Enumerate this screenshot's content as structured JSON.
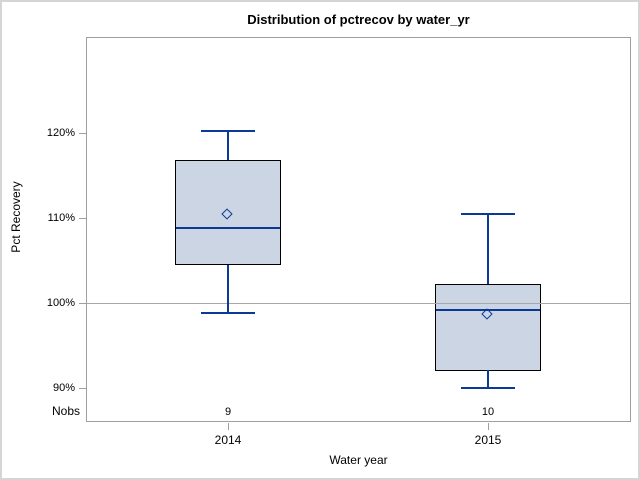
{
  "window": {
    "background": "#ffffff",
    "border_color": "#d5d5d5"
  },
  "chart_data": {
    "type": "boxplot",
    "title": "Distribution of pctrecov by water_yr",
    "xlabel": "Water year",
    "ylabel": "Pct Recovery",
    "nobs_label": "Nobs",
    "ylim": [
      86.0,
      131.3
    ],
    "yticks": [
      120,
      110,
      100,
      90
    ],
    "ytick_labels": [
      "120%",
      "110%",
      "100%",
      "90%"
    ],
    "reference_line": 100,
    "grid": false,
    "legend": false,
    "categories": [
      "2014",
      "2015"
    ],
    "groups": [
      {
        "category": "2014",
        "nobs": 9,
        "whisker_low": 98.9,
        "q1": 104.6,
        "median": 109.0,
        "q3": 117.0,
        "whisker_high": 120.4,
        "mean": 110.5
      },
      {
        "category": "2015",
        "nobs": 10,
        "whisker_low": 90.1,
        "q1": 92.2,
        "median": 99.3,
        "q3": 102.4,
        "whisker_high": 110.6,
        "mean": 98.7
      }
    ],
    "colors": {
      "box_fill": "#ccd5e3",
      "box_border": "#000000",
      "whisker": "#0a3a96",
      "median": "#0a3a96",
      "mean_marker": "#0a3a96",
      "frame": "#9aa0a4",
      "reference_line": "#a8a8a8",
      "text": "#000000"
    }
  }
}
